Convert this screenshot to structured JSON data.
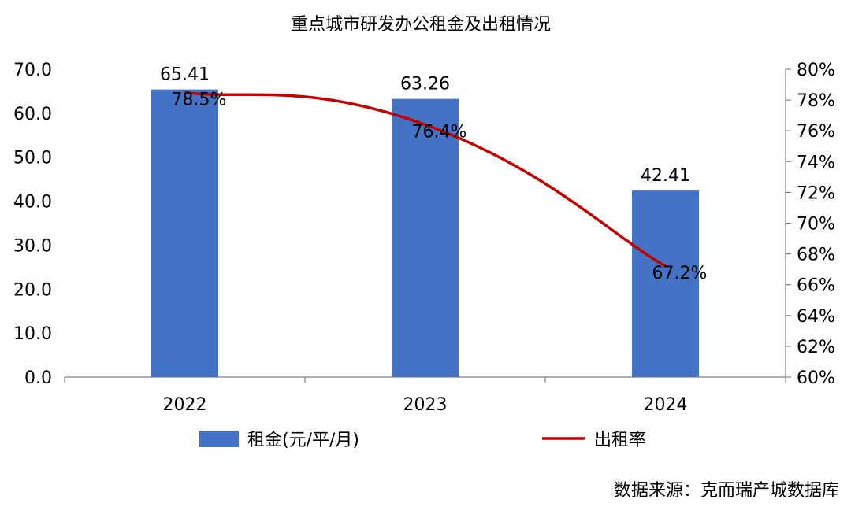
{
  "chart_data": {
    "type": "bar",
    "title": "重点城市研发办公租金及出租情况",
    "categories": [
      "2022",
      "2023",
      "2024"
    ],
    "series": [
      {
        "name": "租金(元/平/月)",
        "type": "bar",
        "axis": "left",
        "color": "#4472C4",
        "values": [
          65.41,
          63.26,
          42.41
        ],
        "labels": [
          "65.41",
          "63.26",
          "42.41"
        ]
      },
      {
        "name": "出租率",
        "type": "line",
        "axis": "right",
        "color": "#C00000",
        "smooth": true,
        "values": [
          78.5,
          76.4,
          67.2
        ],
        "labels": [
          "78.5%",
          "76.4%",
          "67.2%"
        ]
      }
    ],
    "y_left": {
      "min": 0,
      "max": 70,
      "step": 10,
      "tick_labels": [
        "0.0",
        "10.0",
        "20.0",
        "30.0",
        "40.0",
        "50.0",
        "60.0",
        "70.0"
      ]
    },
    "y_right": {
      "min": 60,
      "max": 80,
      "step": 2,
      "unit": "%",
      "tick_labels": [
        "60%",
        "62%",
        "64%",
        "66%",
        "68%",
        "70%",
        "72%",
        "74%",
        "76%",
        "78%",
        "80%"
      ]
    },
    "grid": false,
    "legend_position": "bottom",
    "source": "数据来源：克而瑞产城数据库"
  }
}
